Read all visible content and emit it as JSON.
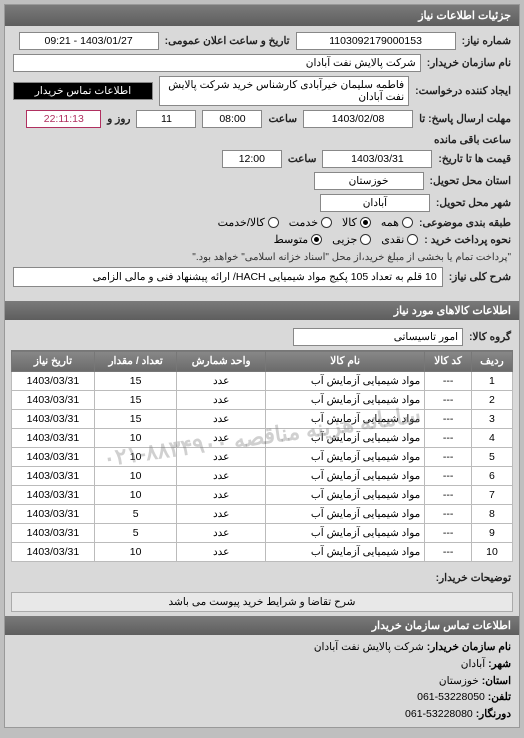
{
  "panels": {
    "main_title": "جزئیات اطلاعات نیاز"
  },
  "form": {
    "req_no_label": "شماره نیاز:",
    "req_no": "1103092179000153",
    "announce_label": "تاریخ و ساعت اعلان عمومی:",
    "announce_value": "1403/01/27 - 09:21",
    "buyer_name_label": "نام سازمان خریدار:",
    "buyer_name": "شرکت پالایش نفت آبادان",
    "requester_label": "ایجاد کننده درخواست:",
    "requester": "فاطمه سلیمان خیرآبادی کارشناس خرید شرکت پالایش نفت آبادان",
    "buyer_contact_btn": "اطلاعات تماس خریدار",
    "deadline_send_label": "مهلت ارسال پاسخ: تا",
    "deadline_send_date": "1403/02/08",
    "time_label": "ساعت",
    "deadline_send_time": "08:00",
    "days_remain": "11",
    "days_remain_label": "روز و",
    "time_remain": "22:11:13",
    "time_remain_suffix": "ساعت باقی مانده",
    "price_until_label": "قیمت ها تا تاریخ:",
    "price_until_date": "1403/03/31",
    "price_until_time": "12:00",
    "province_label": "استان محل تحویل:",
    "province": "خوزستان",
    "city_label": "شهر محل تحویل:",
    "city": "آبادان",
    "cat_label": "طبقه بندی موضوعی:",
    "cat_all": "همه",
    "cat_goods": "کالا",
    "cat_service": "خدمت",
    "cat_credit": "کالا/خدمت",
    "pay_label": "نحوه پرداخت خرید :",
    "pay_cash": "نقدی",
    "pay_partial": "جزیی",
    "pay_medium": "متوسط",
    "pay_note": "\"پرداخت تمام یا بخشی از مبلغ خرید،از محل \"اسناد خزانه اسلامی\" خواهد بود.\"",
    "general_desc_label": "شرح کلی نیاز:",
    "general_desc": "10 قلم به تعداد 105 پکیج مواد شیمیایی HACH/ ارائه پیشنهاد فنی و مالی الزامی"
  },
  "goods": {
    "header": "اطلاعات کالاهای مورد نیاز",
    "group_label": "گروه کالا:",
    "group_value": "امور تاسیساتی",
    "columns": {
      "row": "ردیف",
      "code": "کد کالا",
      "name": "نام کالا",
      "unit": "واحد شمارش",
      "qty": "تعداد / مقدار",
      "date": "تاریخ نیاز"
    },
    "rows": [
      {
        "n": "1",
        "code": "---",
        "name": "مواد شیمیایی آزمایش آب",
        "unit": "عدد",
        "qty": "15",
        "date": "1403/03/31"
      },
      {
        "n": "2",
        "code": "---",
        "name": "مواد شیمیایی آزمایش آب",
        "unit": "عدد",
        "qty": "15",
        "date": "1403/03/31"
      },
      {
        "n": "3",
        "code": "---",
        "name": "مواد شیمیایی آزمایش آب",
        "unit": "عدد",
        "qty": "15",
        "date": "1403/03/31"
      },
      {
        "n": "4",
        "code": "---",
        "name": "مواد شیمیایی آزمایش آب",
        "unit": "عدد",
        "qty": "10",
        "date": "1403/03/31"
      },
      {
        "n": "5",
        "code": "---",
        "name": "مواد شیمیایی آزمایش آب",
        "unit": "عدد",
        "qty": "10",
        "date": "1403/03/31"
      },
      {
        "n": "6",
        "code": "---",
        "name": "مواد شیمیایی آزمایش آب",
        "unit": "عدد",
        "qty": "10",
        "date": "1403/03/31"
      },
      {
        "n": "7",
        "code": "---",
        "name": "مواد شیمیایی آزمایش آب",
        "unit": "عدد",
        "qty": "10",
        "date": "1403/03/31"
      },
      {
        "n": "8",
        "code": "---",
        "name": "مواد شیمیایی آزمایش آب",
        "unit": "عدد",
        "qty": "5",
        "date": "1403/03/31"
      },
      {
        "n": "9",
        "code": "---",
        "name": "مواد شیمیایی آزمایش آب",
        "unit": "عدد",
        "qty": "5",
        "date": "1403/03/31"
      },
      {
        "n": "10",
        "code": "---",
        "name": "مواد شیمیایی آزمایش آب",
        "unit": "عدد",
        "qty": "10",
        "date": "1403/03/31"
      }
    ],
    "watermark": "سامانه هزینه مناقصه ۸۸۳۴۹۰۰-۰۲۱"
  },
  "buyer_notes": {
    "label": "توضیحات خریدار:",
    "text": "شرح تقاضا و شرایط خرید پیوست می باشد"
  },
  "contact": {
    "header": "اطلاعات تماس سازمان خریدار",
    "org_label": "نام سازمان خریدار:",
    "org": "شرکت پالایش نفت آبادان",
    "city_label": "شهر:",
    "city": "آبادان",
    "province_label": "استان:",
    "province": "خوزستان",
    "tel_label": "تلفن:",
    "tel": "53228050-061",
    "fax_label": "دورنگار:",
    "fax": "53228080-061"
  }
}
